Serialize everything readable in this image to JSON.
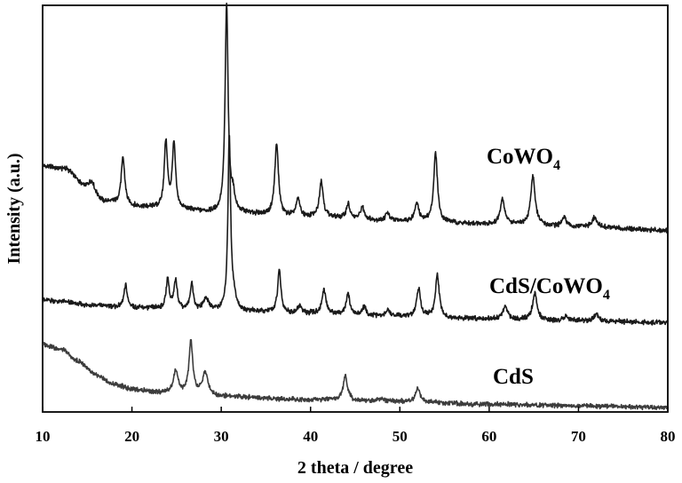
{
  "chart_data": {
    "type": "line",
    "title": "",
    "xlabel": "2 theta / degree",
    "ylabel": "Intensity (a.u.)",
    "xlim": [
      10,
      80
    ],
    "ylim": [
      0,
      100
    ],
    "x_ticks": [
      10,
      20,
      30,
      40,
      50,
      60,
      70,
      80
    ],
    "grid": false,
    "legend": "none",
    "y_tick_labels": false,
    "series": [
      {
        "name": "CoWO4",
        "label_main": "CoWO",
        "label_sub": "4",
        "color": "#1a1a1a",
        "baseline": [
          [
            10,
            60.5
          ],
          [
            12.5,
            59.8
          ],
          [
            15,
            55.2
          ],
          [
            17,
            51.7
          ],
          [
            20,
            50.5
          ],
          [
            25,
            49.7
          ],
          [
            30,
            49.0
          ],
          [
            40,
            47.9
          ],
          [
            50,
            47.0
          ],
          [
            60,
            46.2
          ],
          [
            70,
            45.5
          ],
          [
            80,
            44.7
          ]
        ],
        "peaks": [
          {
            "x": 15.5,
            "h": 2.0,
            "w": 0.35
          },
          {
            "x": 19.0,
            "h": 11.5,
            "w": 0.25
          },
          {
            "x": 23.8,
            "h": 16.5,
            "w": 0.22
          },
          {
            "x": 24.7,
            "h": 16.0,
            "w": 0.22
          },
          {
            "x": 30.6,
            "h": 51.0,
            "w": 0.2
          },
          {
            "x": 31.3,
            "h": 4.0,
            "w": 0.25
          },
          {
            "x": 36.2,
            "h": 17.5,
            "w": 0.25
          },
          {
            "x": 38.6,
            "h": 4.5,
            "w": 0.25
          },
          {
            "x": 41.2,
            "h": 9.0,
            "w": 0.25
          },
          {
            "x": 44.2,
            "h": 3.5,
            "w": 0.25
          },
          {
            "x": 45.8,
            "h": 3.0,
            "w": 0.25
          },
          {
            "x": 48.6,
            "h": 1.8,
            "w": 0.25
          },
          {
            "x": 51.9,
            "h": 4.5,
            "w": 0.25
          },
          {
            "x": 54.0,
            "h": 17.0,
            "w": 0.25
          },
          {
            "x": 61.5,
            "h": 6.0,
            "w": 0.3
          },
          {
            "x": 64.9,
            "h": 12.0,
            "w": 0.3
          },
          {
            "x": 68.4,
            "h": 2.2,
            "w": 0.3
          },
          {
            "x": 71.8,
            "h": 2.5,
            "w": 0.3
          }
        ]
      },
      {
        "name": "CdS/CoWO4",
        "label_main": "CdS/CoWO",
        "label_sub": "4",
        "color": "#1a1a1a",
        "baseline": [
          [
            10,
            27.5
          ],
          [
            12,
            27.2
          ],
          [
            15,
            26.3
          ],
          [
            20,
            25.6
          ],
          [
            30,
            24.9
          ],
          [
            40,
            24.2
          ],
          [
            50,
            23.5
          ],
          [
            60,
            22.9
          ],
          [
            70,
            22.4
          ],
          [
            80,
            22.0
          ]
        ],
        "peaks": [
          {
            "x": 19.3,
            "h": 5.5,
            "w": 0.22
          },
          {
            "x": 24.0,
            "h": 7.5,
            "w": 0.2
          },
          {
            "x": 24.9,
            "h": 7.0,
            "w": 0.22
          },
          {
            "x": 26.7,
            "h": 6.5,
            "w": 0.2
          },
          {
            "x": 28.3,
            "h": 3.0,
            "w": 0.35
          },
          {
            "x": 30.9,
            "h": 43.0,
            "w": 0.18
          },
          {
            "x": 31.4,
            "h": 3.0,
            "w": 0.25
          },
          {
            "x": 36.5,
            "h": 10.5,
            "w": 0.22
          },
          {
            "x": 38.8,
            "h": 2.0,
            "w": 0.25
          },
          {
            "x": 41.5,
            "h": 6.0,
            "w": 0.25
          },
          {
            "x": 44.2,
            "h": 5.0,
            "w": 0.25
          },
          {
            "x": 46.0,
            "h": 2.0,
            "w": 0.25
          },
          {
            "x": 48.7,
            "h": 1.5,
            "w": 0.25
          },
          {
            "x": 52.1,
            "h": 7.0,
            "w": 0.25
          },
          {
            "x": 54.2,
            "h": 10.5,
            "w": 0.25
          },
          {
            "x": 61.8,
            "h": 3.0,
            "w": 0.3
          },
          {
            "x": 65.1,
            "h": 6.5,
            "w": 0.3
          },
          {
            "x": 68.6,
            "h": 1.2,
            "w": 0.3
          },
          {
            "x": 72.0,
            "h": 1.5,
            "w": 0.3
          }
        ]
      },
      {
        "name": "CdS",
        "label_main": "CdS",
        "label_sub": "",
        "color": "#3c3c3c",
        "baseline": [
          [
            10,
            16.5
          ],
          [
            12,
            15.5
          ],
          [
            14,
            12.5
          ],
          [
            16,
            9.0
          ],
          [
            18,
            6.8
          ],
          [
            20,
            5.6
          ],
          [
            23,
            4.8
          ],
          [
            30,
            3.8
          ],
          [
            40,
            3.0
          ],
          [
            50,
            2.5
          ],
          [
            60,
            1.9
          ],
          [
            70,
            1.5
          ],
          [
            80,
            1.1
          ]
        ],
        "peaks": [
          {
            "x": 24.9,
            "h": 5.5,
            "w": 0.3
          },
          {
            "x": 26.6,
            "h": 13.0,
            "w": 0.25
          },
          {
            "x": 28.2,
            "h": 5.5,
            "w": 0.4
          },
          {
            "x": 43.9,
            "h": 6.0,
            "w": 0.3
          },
          {
            "x": 47.9,
            "h": 0.9,
            "w": 0.4
          },
          {
            "x": 52.0,
            "h": 3.5,
            "w": 0.3
          }
        ]
      }
    ]
  }
}
